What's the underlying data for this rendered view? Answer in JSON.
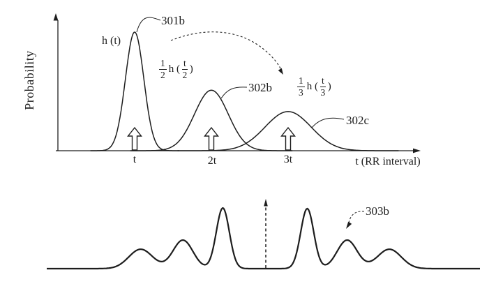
{
  "colors": {
    "ink": "#1d1d1d",
    "background": "#ffffff"
  },
  "figure": {
    "labels": {
      "peak1_function": "h (t)",
      "ref_301b": "301b",
      "ref_302b": "302b",
      "ref_302c": "302c",
      "ref_303b": "303b",
      "half_fraction": {
        "coef_num": "1",
        "coef_den": "2",
        "body": "h (",
        "arg_num": "t",
        "arg_den": "2",
        "close": ")"
      },
      "third_fraction": {
        "coef_num": "1",
        "coef_den": "3",
        "body": "h (",
        "arg_num": "t",
        "arg_den": "3",
        "close": ")"
      }
    }
  },
  "chart_data": [
    {
      "type": "line",
      "title": "",
      "ylabel": "Probability",
      "xlabel": "t (RR interval)",
      "grid": false,
      "x_range": [
        0,
        4.7
      ],
      "y_range": [
        0,
        1.15
      ],
      "x_ticks": [
        {
          "x": 1,
          "label": "t"
        },
        {
          "x": 2,
          "label": "2t"
        },
        {
          "x": 3,
          "label": "3t"
        }
      ],
      "series": [
        {
          "name": "h (t)",
          "callout": "301b",
          "peak_center": 1,
          "peak_height": 1.0,
          "sigma": 0.12
        },
        {
          "name": "(1/2) h (t/2)",
          "callout": "302b",
          "peak_center": 2,
          "peak_height": 0.51,
          "sigma": 0.22
        },
        {
          "name": "(1/3) h (t/3)",
          "callout": "302c",
          "peak_center": 3,
          "peak_height": 0.33,
          "sigma": 0.3
        }
      ],
      "marker_arrows_x": [
        1,
        2,
        3
      ]
    },
    {
      "type": "line",
      "name": "composite RR-interval distribution",
      "callout": "303b",
      "x_range": [
        -2.85,
        2.8
      ],
      "center_dashed_arrow_x": 0,
      "peaks": [
        {
          "x": -1.63,
          "height": 0.32,
          "sigma": 0.155
        },
        {
          "x": -1.08,
          "height": 0.47,
          "sigma": 0.13
        },
        {
          "x": -0.56,
          "height": 1.0,
          "sigma": 0.085
        },
        {
          "x": 0.54,
          "height": 0.99,
          "sigma": 0.085
        },
        {
          "x": 1.06,
          "height": 0.47,
          "sigma": 0.13
        },
        {
          "x": 1.61,
          "height": 0.32,
          "sigma": 0.155
        }
      ]
    }
  ]
}
